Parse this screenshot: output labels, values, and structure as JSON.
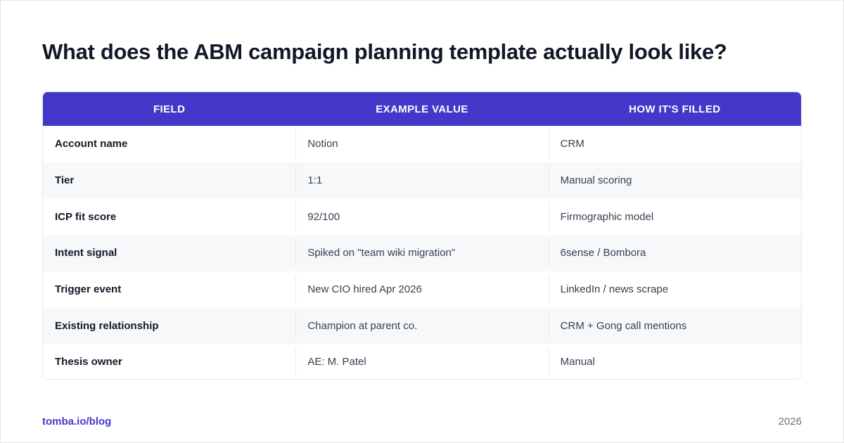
{
  "page": {
    "title": "What does the ABM campaign planning template actually look like?"
  },
  "table": {
    "headers": [
      "FIELD",
      "EXAMPLE VALUE",
      "HOW IT'S FILLED"
    ],
    "rows": [
      [
        "Account name",
        "Notion",
        "CRM"
      ],
      [
        "Tier",
        "1:1",
        "Manual scoring"
      ],
      [
        "ICP fit score",
        "92/100",
        "Firmographic model"
      ],
      [
        "Intent signal",
        "Spiked on \"team wiki migration\"",
        "6sense / Bombora"
      ],
      [
        "Trigger event",
        "New CIO hired Apr 2026",
        "LinkedIn / news scrape"
      ],
      [
        "Existing relationship",
        "Champion at parent co.",
        "CRM + Gong call mentions"
      ],
      [
        "Thesis owner",
        "AE: M. Patel",
        "Manual"
      ]
    ]
  },
  "footer": {
    "link": "tomba.io/blog",
    "year": "2026"
  },
  "colors": {
    "header_bg": "#4338ca",
    "accent": "#4338ca",
    "title": "#111827",
    "alt_row_bg": "#f7f8fa"
  }
}
